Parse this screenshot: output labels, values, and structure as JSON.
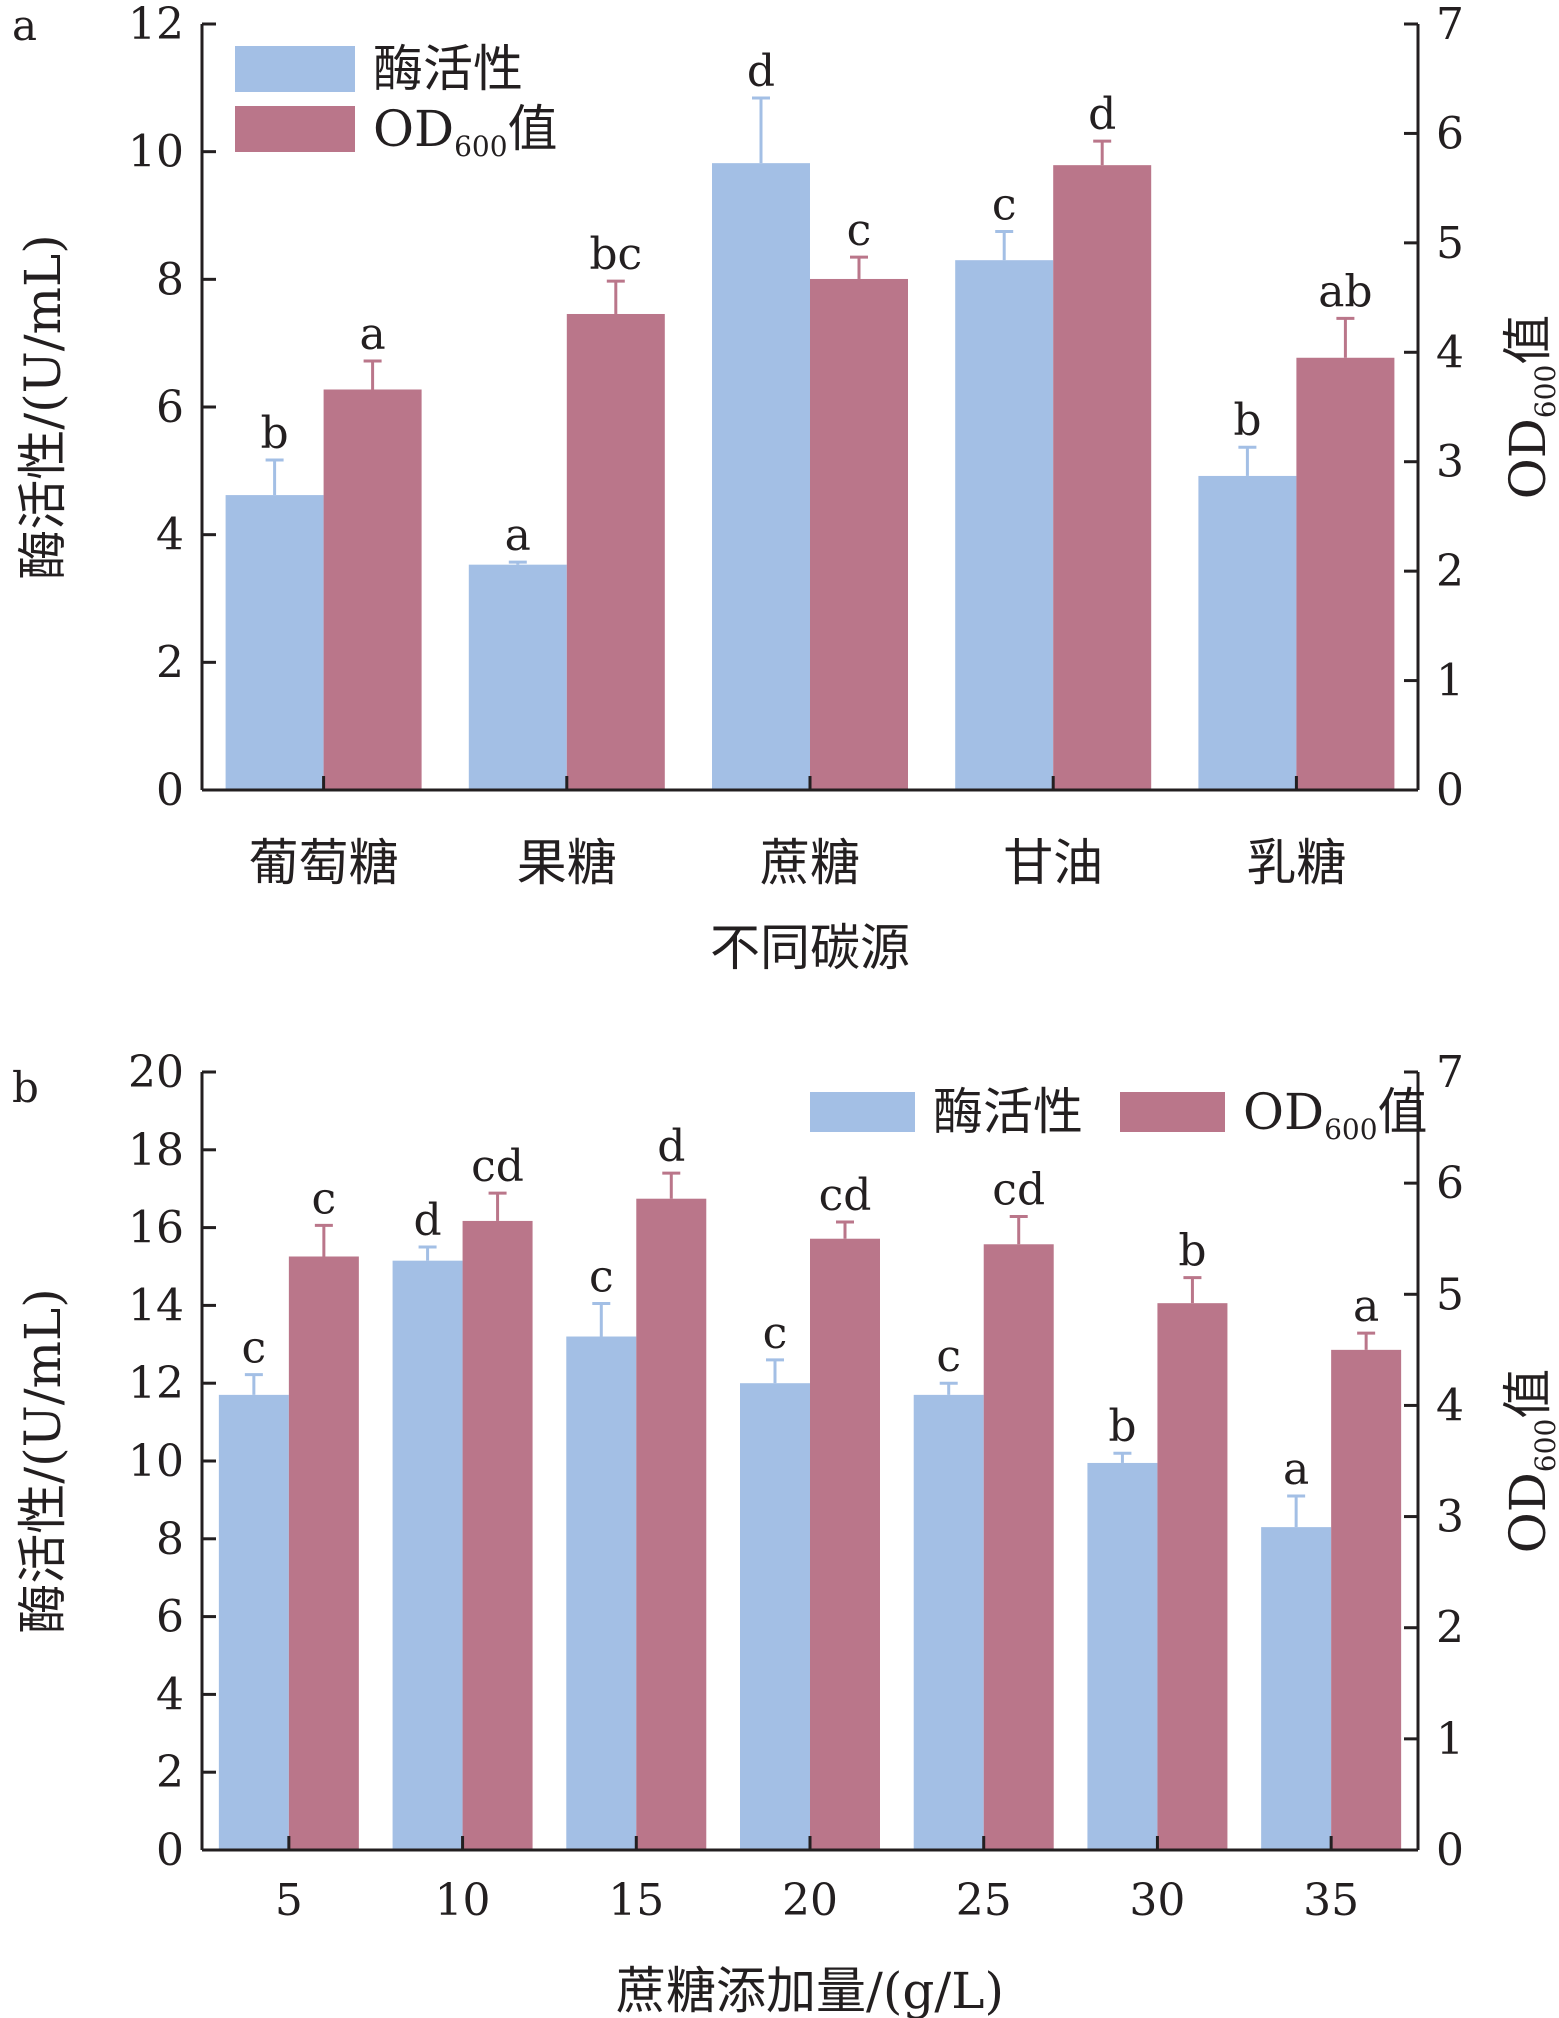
{
  "chart_data": [
    {
      "panel_label": "a",
      "type": "bar",
      "categories": [
        "葡萄糖",
        "果糖",
        "蔗糖",
        "甘油",
        "乳糖"
      ],
      "xlabel": "不同碳源",
      "ylabel": "酶活性/(U/mL)",
      "y2label": {
        "main": "OD",
        "sub": "600",
        "suffix": "值"
      },
      "ylim": [
        0,
        12
      ],
      "y2lim": [
        0,
        7
      ],
      "yticks": [
        "0",
        "2",
        "4",
        "6",
        "8",
        "10",
        "12"
      ],
      "y2ticks": [
        "0",
        "1",
        "2",
        "3",
        "4",
        "5",
        "6",
        "7"
      ],
      "legend_placement": "top-left",
      "series": [
        {
          "name": "酶活性",
          "axis": "left",
          "color": "#a3bfe5",
          "values": [
            4.62,
            3.53,
            9.82,
            8.3,
            4.92
          ],
          "errors": [
            0.55,
            0.04,
            1.02,
            0.45,
            0.45
          ],
          "labels": [
            "b",
            "a",
            "d",
            "c",
            "b"
          ]
        },
        {
          "name": {
            "main": "OD",
            "sub": "600",
            "suffix": "值"
          },
          "axis": "right",
          "color": "#ba768a",
          "values": [
            3.66,
            4.35,
            4.67,
            5.71,
            3.95
          ],
          "errors": [
            0.26,
            0.3,
            0.2,
            0.22,
            0.36
          ],
          "labels": [
            "a",
            "bc",
            "c",
            "d",
            "ab"
          ]
        }
      ]
    },
    {
      "panel_label": "b",
      "type": "bar",
      "categories": [
        "5",
        "10",
        "15",
        "20",
        "25",
        "30",
        "35"
      ],
      "xlabel": "蔗糖添加量/(g/L)",
      "ylabel": "酶活性/(U/mL)",
      "y2label": {
        "main": "OD",
        "sub": "600",
        "suffix": "值"
      },
      "ylim": [
        0,
        20
      ],
      "y2lim": [
        0,
        7
      ],
      "yticks": [
        "0",
        "2",
        "4",
        "6",
        "8",
        "10",
        "12",
        "14",
        "16",
        "18",
        "20"
      ],
      "y2ticks": [
        "0",
        "1",
        "2",
        "3",
        "4",
        "5",
        "6",
        "7"
      ],
      "legend_placement": "top-right",
      "series": [
        {
          "name": "酶活性",
          "axis": "left",
          "color": "#a3bfe5",
          "values": [
            11.7,
            15.15,
            13.2,
            12.0,
            11.7,
            9.95,
            8.3
          ],
          "errors": [
            0.52,
            0.35,
            0.85,
            0.6,
            0.3,
            0.25,
            0.8
          ],
          "labels": [
            "c",
            "d",
            "c",
            "c",
            "c",
            "b",
            "a"
          ]
        },
        {
          "name": {
            "main": "OD",
            "sub": "600",
            "suffix": "值"
          },
          "axis": "right",
          "color": "#ba768a",
          "values": [
            5.34,
            5.66,
            5.86,
            5.5,
            5.45,
            4.92,
            4.5
          ],
          "errors": [
            0.28,
            0.25,
            0.23,
            0.15,
            0.25,
            0.23,
            0.15
          ],
          "labels": [
            "c",
            "cd",
            "d",
            "cd",
            "cd",
            "b",
            "a"
          ]
        }
      ]
    }
  ]
}
